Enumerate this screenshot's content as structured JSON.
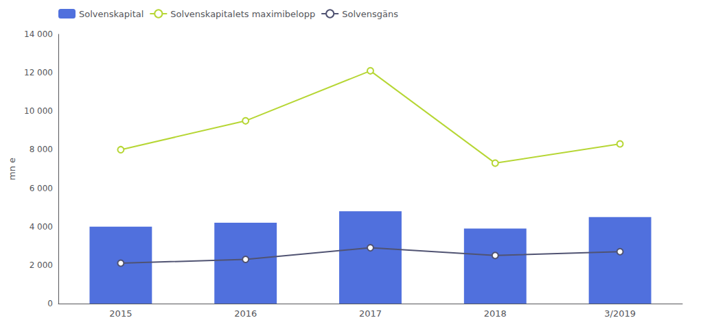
{
  "chart_data": {
    "type": "bar",
    "ylabel": "mn e",
    "categories": [
      "2015",
      "2016",
      "2017",
      "2018",
      "3/2019"
    ],
    "series": [
      {
        "name": "Solvenskapital",
        "type": "bar",
        "values": [
          4000,
          4200,
          4800,
          3900,
          4500
        ]
      },
      {
        "name": "Solvenskapitalets maximibelopp",
        "type": "line",
        "marker": "circle",
        "values": [
          8000,
          9500,
          12100,
          7300,
          8300
        ]
      },
      {
        "name": "Solvensgäns",
        "type": "line",
        "marker": "circle",
        "values": [
          2100,
          2300,
          2900,
          2500,
          2700
        ]
      }
    ],
    "ylim": [
      0,
      14000
    ],
    "yticks": [
      0,
      {
        "value": 2000,
        "label": "2 000"
      },
      {
        "value": 4000,
        "label": "4 000"
      },
      {
        "value": 6000,
        "label": "6 000"
      },
      {
        "value": 8000,
        "label": "8 000"
      },
      {
        "value": 10000,
        "label": "10 000"
      },
      {
        "value": 12000,
        "label": "12 000"
      },
      {
        "value": 14000,
        "label": "14 000"
      }
    ],
    "grid": false,
    "legend": "upper left"
  }
}
